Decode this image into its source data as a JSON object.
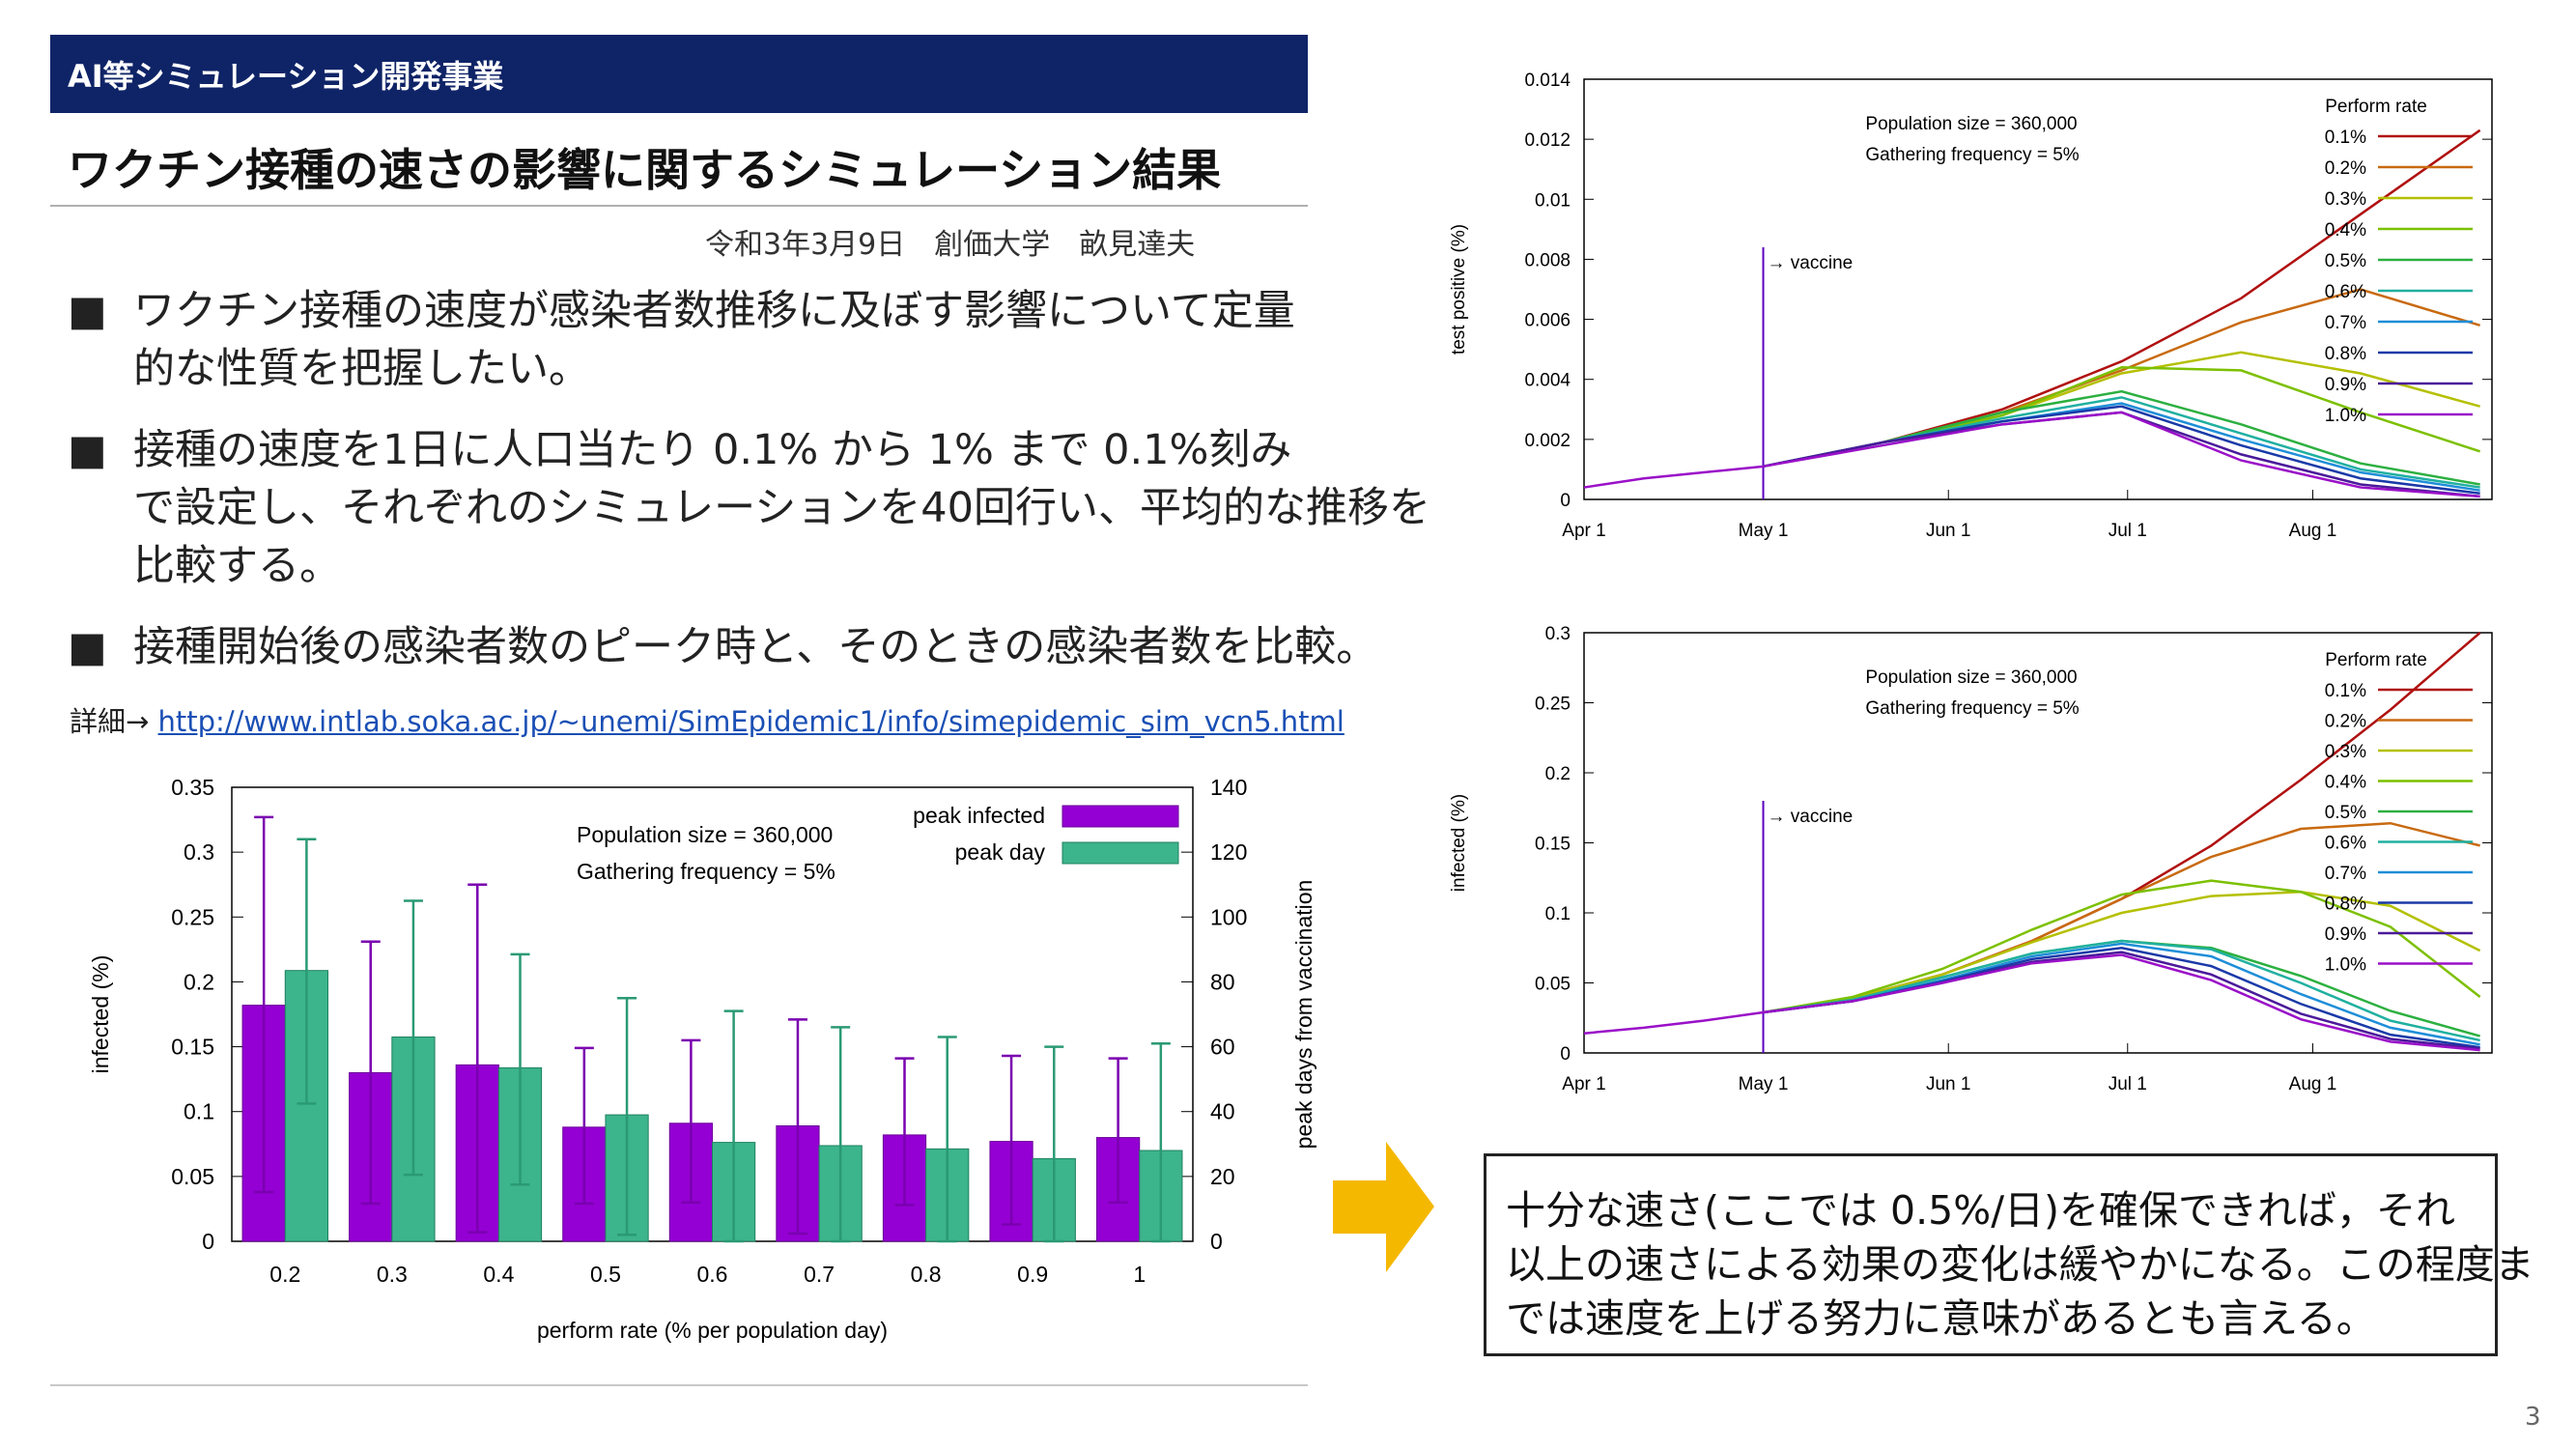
{
  "header": {
    "label": "AI等シミュレーション開発事業"
  },
  "title": "ワクチン接種の速さの影響に関するシミュレーション結果",
  "date_line": "令和3年3月9日　創価大学　畝見達夫",
  "bullets": [
    {
      "mark": "■",
      "lines": [
        "ワクチン接種の速度が感染者数推移に及ぼす影響について定量",
        "的な性質を把握したい。"
      ]
    },
    {
      "mark": "■",
      "lines": [
        "接種の速度を1日に人口当たり 0.1% から 1% まで 0.1%刻み",
        "で設定し、それぞれのシミュレーションを40回行い、平均的な推移を",
        "比較する。"
      ]
    },
    {
      "mark": "■",
      "lines": [
        " 接種開始後の感染者数のピーク時と、そのときの感染者数を比較。"
      ]
    }
  ],
  "detail": {
    "prefix": "詳細→ ",
    "link": "http://www.intlab.soka.ac.jp/~unemi/SimEpidemic1/info/simepidemic_sim_vcn5.html"
  },
  "note": {
    "lines": [
      "十分な速さ(ここでは 0.5%/日)を確保できれば，それ",
      "以上の速さによる効果の変化は緩やかになる。この程度ま",
      "では速度を上げる努力に意味があるとも言える。"
    ]
  },
  "page_number": "3",
  "colors": {
    "header_bg": "#0f2467",
    "purple": "#9400d3",
    "teal": "#3cb48c",
    "arrow": "#f5b800",
    "link": "#1a4fb5"
  },
  "chart_data": [
    {
      "id": "bar",
      "type": "bar",
      "title": "",
      "annotations": [
        "Population size = 360,000",
        "Gathering frequency = 5%"
      ],
      "xlabel": "perform rate (% per population day)",
      "ylabel": "infected (%)",
      "y2label": "peak days from vaccination",
      "categories": [
        "0.2",
        "0.3",
        "0.4",
        "0.5",
        "0.6",
        "0.7",
        "0.8",
        "0.9",
        "1"
      ],
      "ylim": [
        0,
        0.35
      ],
      "yticks": [
        "0",
        "0.05",
        "0.1",
        "0.15",
        "0.2",
        "0.25",
        "0.3",
        "0.35"
      ],
      "y2lim": [
        0,
        140
      ],
      "y2ticks": [
        "0",
        "20",
        "40",
        "60",
        "80",
        "100",
        "120",
        "140"
      ],
      "legend_position": "top-right",
      "series": [
        {
          "name": "peak infected",
          "axis": "left",
          "color": "#9400d3",
          "values": [
            0.182,
            0.13,
            0.136,
            0.088,
            0.091,
            0.089,
            0.082,
            0.077,
            0.08
          ],
          "err_low": [
            0.038,
            0.029,
            0.007,
            0.029,
            0.03,
            0.006,
            0.028,
            0.013,
            0.03
          ],
          "err_high": [
            0.327,
            0.231,
            0.275,
            0.149,
            0.155,
            0.171,
            0.141,
            0.143,
            0.141
          ]
        },
        {
          "name": "peak day",
          "axis": "right",
          "color": "#3cb48c",
          "values": [
            83.5,
            63,
            53.5,
            39,
            30.5,
            29.5,
            28.5,
            25.5,
            28
          ],
          "err_low": [
            42.5,
            20.5,
            17.5,
            2,
            0,
            0,
            0,
            0,
            0
          ],
          "err_high": [
            124,
            105,
            88.5,
            75,
            71,
            66,
            63,
            60,
            61
          ]
        }
      ]
    },
    {
      "id": "test",
      "type": "line",
      "ylabel": "test positive (%)",
      "xticks": [
        "Apr 1",
        "May 1",
        "Jun 1",
        "Jul 1",
        "Aug 1"
      ],
      "ylim": [
        0,
        0.014
      ],
      "yticks": [
        "0",
        "0.002",
        "0.004",
        "0.006",
        "0.008",
        "0.01",
        "0.012",
        "0.014"
      ],
      "annotations": [
        "Population size = 360,000",
        "Gathering frequency = 5%"
      ],
      "vaccine_label": "→ vaccine",
      "vaccine_day": 30,
      "legend_title": "Perform rate",
      "common_prefix": {
        "x": [
          0,
          10,
          20,
          30
        ],
        "y": [
          0.0004,
          0.0007,
          0.0009,
          0.0011
        ]
      },
      "series": [
        {
          "name": "0.1%",
          "color": "#b01010",
          "x": [
            30,
            50,
            70,
            90,
            110,
            130,
            150
          ],
          "y": [
            0.0011,
            0.0019,
            0.003,
            0.0046,
            0.0067,
            0.0095,
            0.0123
          ]
        },
        {
          "name": "0.2%",
          "color": "#c86a10",
          "x": [
            30,
            50,
            70,
            90,
            110,
            130,
            150
          ],
          "y": [
            0.0011,
            0.0019,
            0.0029,
            0.0043,
            0.0059,
            0.007,
            0.0058
          ]
        },
        {
          "name": "0.3%",
          "color": "#b4c000",
          "x": [
            30,
            50,
            70,
            90,
            110,
            130,
            150
          ],
          "y": [
            0.0011,
            0.0019,
            0.0028,
            0.0042,
            0.0049,
            0.0042,
            0.0031
          ]
        },
        {
          "name": "0.4%",
          "color": "#7cc000",
          "x": [
            30,
            50,
            70,
            90,
            110,
            130,
            150
          ],
          "y": [
            0.0011,
            0.0019,
            0.0028,
            0.0044,
            0.0043,
            0.0029,
            0.0016
          ]
        },
        {
          "name": "0.5%",
          "color": "#2cb040",
          "x": [
            30,
            50,
            70,
            90,
            110,
            130,
            150
          ],
          "y": [
            0.0011,
            0.0019,
            0.0029,
            0.0036,
            0.0025,
            0.0012,
            0.0005
          ]
        },
        {
          "name": "0.6%",
          "color": "#20b0a0",
          "x": [
            30,
            50,
            70,
            90,
            110,
            130,
            150
          ],
          "y": [
            0.0011,
            0.0019,
            0.0027,
            0.0034,
            0.0022,
            0.001,
            0.0004
          ]
        },
        {
          "name": "0.7%",
          "color": "#1e8ed8",
          "x": [
            30,
            50,
            70,
            90,
            110,
            130,
            150
          ],
          "y": [
            0.0011,
            0.0019,
            0.0026,
            0.0032,
            0.002,
            0.0009,
            0.0003
          ]
        },
        {
          "name": "0.8%",
          "color": "#1a3aa8",
          "x": [
            30,
            50,
            70,
            90,
            110,
            130,
            150
          ],
          "y": [
            0.0011,
            0.0019,
            0.0026,
            0.0031,
            0.0018,
            0.0007,
            0.0002
          ]
        },
        {
          "name": "0.9%",
          "color": "#4a1a9a",
          "x": [
            30,
            50,
            70,
            90,
            110,
            130,
            150
          ],
          "y": [
            0.0011,
            0.0019,
            0.0025,
            0.0029,
            0.0015,
            0.0005,
            0.0001
          ]
        },
        {
          "name": "1.0%",
          "color": "#9a10c8",
          "x": [
            30,
            50,
            70,
            90,
            110,
            130,
            150
          ],
          "y": [
            0.0011,
            0.0018,
            0.0025,
            0.0029,
            0.0013,
            0.0004,
            0.0001
          ]
        }
      ]
    },
    {
      "id": "inf",
      "type": "line",
      "ylabel": "infected (%)",
      "xticks": [
        "Apr 1",
        "May 1",
        "Jun 1",
        "Jul 1",
        "Aug 1"
      ],
      "ylim": [
        0,
        0.3
      ],
      "yticks": [
        "0",
        "0.05",
        "0.1",
        "0.15",
        "0.2",
        "0.25",
        "0.3"
      ],
      "annotations": [
        "Population size = 360,000",
        "Gathering frequency = 5%"
      ],
      "vaccine_label": "→ vaccine",
      "vaccine_day": 30,
      "legend_title": "Perform rate",
      "common_prefix": {
        "x": [
          0,
          10,
          20,
          30
        ],
        "y": [
          0.014,
          0.018,
          0.023,
          0.029
        ]
      },
      "series": [
        {
          "name": "0.1%",
          "color": "#b01010",
          "x": [
            30,
            45,
            60,
            75,
            90,
            105,
            120,
            135,
            150
          ],
          "y": [
            0.029,
            0.039,
            0.056,
            0.08,
            0.11,
            0.148,
            0.195,
            0.245,
            0.3
          ]
        },
        {
          "name": "0.2%",
          "color": "#c86a10",
          "x": [
            30,
            45,
            60,
            75,
            90,
            105,
            120,
            135,
            150
          ],
          "y": [
            0.029,
            0.039,
            0.056,
            0.08,
            0.11,
            0.14,
            0.16,
            0.164,
            0.148
          ]
        },
        {
          "name": "0.3%",
          "color": "#b4c000",
          "x": [
            30,
            45,
            60,
            75,
            90,
            105,
            120,
            135,
            150
          ],
          "y": [
            0.029,
            0.039,
            0.056,
            0.079,
            0.1,
            0.112,
            0.115,
            0.105,
            0.073
          ]
        },
        {
          "name": "0.4%",
          "color": "#7cc000",
          "x": [
            30,
            45,
            60,
            75,
            90,
            105,
            120,
            135,
            150
          ],
          "y": [
            0.029,
            0.04,
            0.06,
            0.088,
            0.113,
            0.123,
            0.115,
            0.09,
            0.04
          ]
        },
        {
          "name": "0.5%",
          "color": "#2cb040",
          "x": [
            30,
            45,
            60,
            75,
            90,
            105,
            120,
            135,
            150
          ],
          "y": [
            0.029,
            0.038,
            0.054,
            0.071,
            0.08,
            0.075,
            0.055,
            0.03,
            0.012
          ]
        },
        {
          "name": "0.6%",
          "color": "#20b0a0",
          "x": [
            30,
            45,
            60,
            75,
            90,
            105,
            120,
            135,
            150
          ],
          "y": [
            0.029,
            0.038,
            0.054,
            0.071,
            0.08,
            0.074,
            0.05,
            0.023,
            0.009
          ]
        },
        {
          "name": "0.7%",
          "color": "#1e8ed8",
          "x": [
            30,
            45,
            60,
            75,
            90,
            105,
            120,
            135,
            150
          ],
          "y": [
            0.029,
            0.037,
            0.052,
            0.069,
            0.078,
            0.069,
            0.042,
            0.018,
            0.006
          ]
        },
        {
          "name": "0.8%",
          "color": "#1a3aa8",
          "x": [
            30,
            45,
            60,
            75,
            90,
            105,
            120,
            135,
            150
          ],
          "y": [
            0.029,
            0.037,
            0.051,
            0.067,
            0.075,
            0.062,
            0.035,
            0.013,
            0.004
          ]
        },
        {
          "name": "0.9%",
          "color": "#4a1a9a",
          "x": [
            30,
            45,
            60,
            75,
            90,
            105,
            120,
            135,
            150
          ],
          "y": [
            0.029,
            0.037,
            0.05,
            0.065,
            0.072,
            0.056,
            0.028,
            0.01,
            0.003
          ]
        },
        {
          "name": "1.0%",
          "color": "#9a10c8",
          "x": [
            30,
            45,
            60,
            75,
            90,
            105,
            120,
            135,
            150
          ],
          "y": [
            0.029,
            0.037,
            0.05,
            0.064,
            0.07,
            0.052,
            0.024,
            0.008,
            0.002
          ]
        }
      ]
    }
  ]
}
